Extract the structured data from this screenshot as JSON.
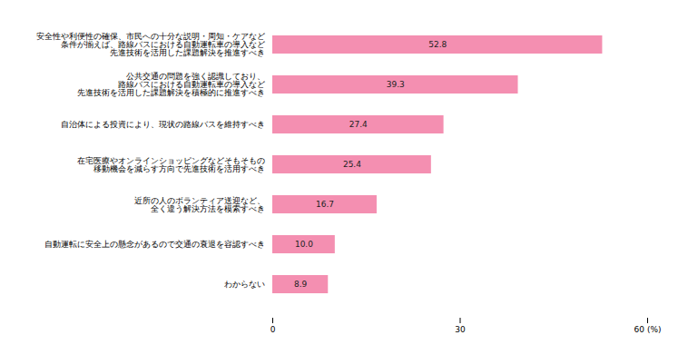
{
  "chart_data": {
    "type": "bar",
    "orientation": "horizontal",
    "categories": [
      "安全性や利便性の確保、市民への十分な説明・周知・ケアなど\n条件が揃えば、路線バスにおける自動運転車の導入など\n先進技術を活用した課題解決を推進すべき",
      "公共交通の問題を強く認識しており、\n路線バスにおける自動運転車の導入など\n先進技術を活用した課題解決を積極的に推進すべき",
      "自治体による投資により、現状の路線バスを維持すべき",
      "在宅医療やオンラインショッピングなどそもそもの\n移動機会を減らす方向で先進技術を活用すべき",
      "近所の人のボランティア送迎など、\n全く違う解決方法を模索すべき",
      "自動運転に安全上の懸念があるので交通の衰退を容認すべき",
      "わからない"
    ],
    "values": [
      52.8,
      39.3,
      27.4,
      25.4,
      16.7,
      10.0,
      8.9
    ],
    "value_labels": [
      "52.8",
      "39.3",
      "27.4",
      "25.4",
      "16.7",
      "10.0",
      "8.9"
    ],
    "color": "#f48fb1",
    "xlim": [
      0,
      60
    ],
    "xticks": [
      0,
      30,
      {
        "value": 60,
        "label": "60 (%)"
      }
    ],
    "data_labels": true,
    "grid": false
  }
}
